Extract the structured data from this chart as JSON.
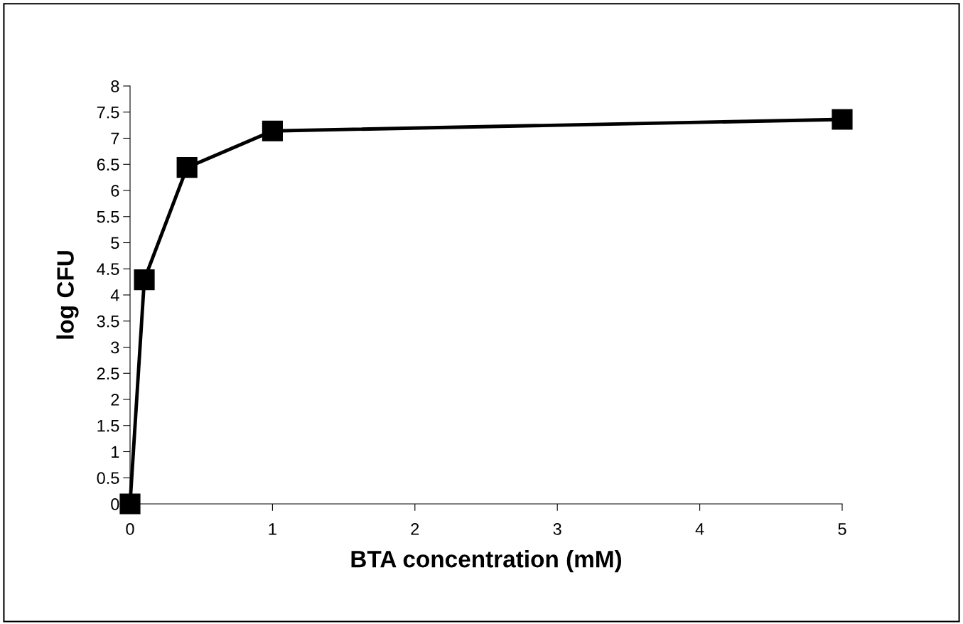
{
  "chart_data": {
    "type": "line",
    "xlabel": "BTA concentration (mM)",
    "ylabel": "log CFU",
    "x": [
      0,
      0.1,
      0.4,
      1,
      5
    ],
    "series": [
      {
        "color": "#000000",
        "values": [
          0,
          4.29,
          6.44,
          7.14,
          7.36
        ]
      }
    ],
    "xlim": [
      0,
      5
    ],
    "xticks": [
      0,
      1,
      2,
      3,
      4,
      5
    ],
    "ylim": [
      0,
      8
    ],
    "yticks": [
      0,
      0.5,
      1,
      1.5,
      2,
      2.5,
      3,
      3.5,
      4,
      4.5,
      5,
      5.5,
      6,
      6.5,
      7,
      7.5,
      8
    ],
    "grid": false,
    "legend": false,
    "marker": "square",
    "line_style": "solid"
  }
}
